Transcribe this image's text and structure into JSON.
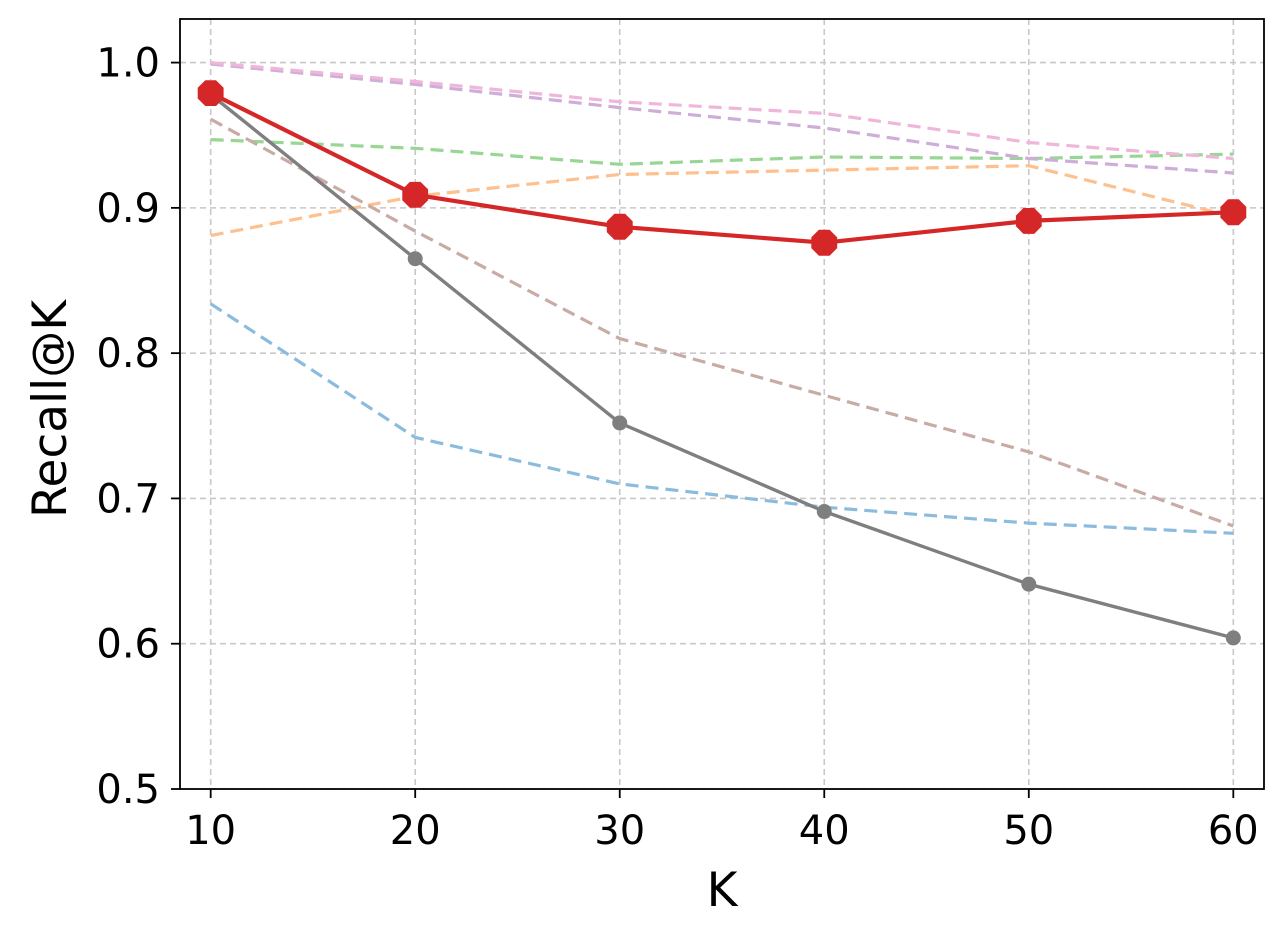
{
  "chart_data": {
    "type": "line",
    "title": "",
    "xlabel": "K",
    "ylabel": "Recall@K",
    "x": [
      10,
      20,
      30,
      40,
      50,
      60
    ],
    "xlim": [
      8.5,
      61.5
    ],
    "ylim": [
      0.5,
      1.03
    ],
    "x_ticks": [
      "10",
      "20",
      "30",
      "40",
      "50",
      "60"
    ],
    "y_ticks": [
      "0.5",
      "0.6",
      "0.7",
      "0.8",
      "0.9",
      "1.0"
    ],
    "grid": true,
    "legend": "none",
    "series": [
      {
        "values": [
          0.834,
          0.742,
          0.71,
          0.694,
          0.683,
          0.676
        ],
        "color": "#8bbcdd",
        "style": "dashed",
        "marker": "none"
      },
      {
        "values": [
          0.881,
          0.908,
          0.923,
          0.926,
          0.929,
          0.894
        ],
        "color": "#fdc08e",
        "style": "dashed",
        "marker": "none"
      },
      {
        "values": [
          0.947,
          0.941,
          0.93,
          0.935,
          0.934,
          0.937
        ],
        "color": "#98d694",
        "style": "dashed",
        "marker": "none"
      },
      {
        "values": [
          0.999,
          0.985,
          0.969,
          0.955,
          0.934,
          0.924
        ],
        "color": "#cfadd9",
        "style": "dashed",
        "marker": "none"
      },
      {
        "values": [
          1.0,
          0.987,
          0.973,
          0.965,
          0.945,
          0.934
        ],
        "color": "#f0b6da",
        "style": "dashed",
        "marker": "none"
      },
      {
        "values": [
          0.961,
          0.884,
          0.81,
          0.771,
          0.732,
          0.681
        ],
        "color": "#c9aba5",
        "style": "dashed",
        "marker": "none"
      },
      {
        "values": [
          0.978,
          0.865,
          0.752,
          0.691,
          0.641,
          0.604
        ],
        "color": "#7f7f7f",
        "style": "solid",
        "marker": "circle"
      },
      {
        "values": [
          0.979,
          0.909,
          0.887,
          0.876,
          0.891,
          0.897
        ],
        "color": "#d62728",
        "style": "solid",
        "marker": "octagon"
      }
    ]
  }
}
